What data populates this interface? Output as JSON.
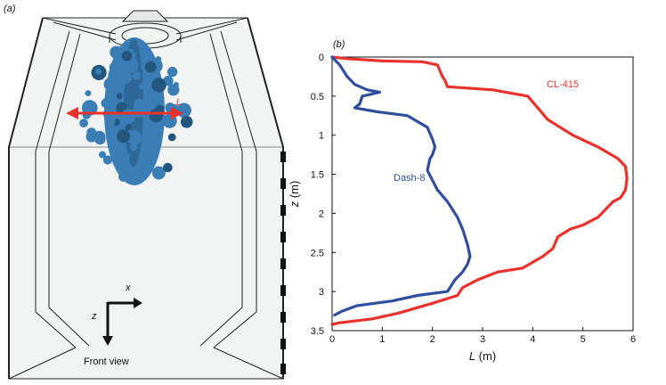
{
  "panel_a": {
    "tag": "(a)",
    "width_marker": "L",
    "axis_x": "x",
    "axis_z": "z",
    "caption": "Front view",
    "colors": {
      "plume": "#3b7db5",
      "plume_dark": "#23577f",
      "arrow": "#e8322b"
    }
  },
  "chart_data": {
    "type": "line",
    "panel_tag": "(b)",
    "xlabel_symbol": "L",
    "xlabel_unit": "(m)",
    "ylabel_symbol": "z",
    "ylabel_unit": "(m)",
    "xlim": [
      0,
      6
    ],
    "ylim": [
      0,
      3.5
    ],
    "y_inverted": true,
    "grid": false,
    "xticks": [
      0,
      1,
      2,
      3,
      4,
      5,
      6
    ],
    "yticks": [
      0,
      0.5,
      1,
      1.5,
      2,
      2.5,
      3,
      3.5
    ],
    "ytick_labels": [
      "0",
      "0.5",
      "1",
      "1.5",
      "2",
      "2.5",
      "3",
      "3.5"
    ],
    "series": [
      {
        "name": "CL-415",
        "color": "#e8322b",
        "x": [
          0.0,
          0.3,
          1.0,
          1.8,
          2.1,
          2.2,
          2.25,
          2.3,
          3.2,
          3.9,
          4.1,
          4.3,
          4.8,
          5.3,
          5.7,
          5.85,
          5.88,
          5.85,
          5.75,
          5.6,
          5.3,
          5.0,
          4.75,
          4.5,
          4.4,
          4.2,
          3.8,
          3.3,
          2.9,
          2.6,
          2.5,
          2.0,
          1.3,
          0.8,
          0.15,
          0.0
        ],
        "y": [
          0.0,
          0.02,
          0.05,
          0.06,
          0.1,
          0.25,
          0.3,
          0.38,
          0.42,
          0.5,
          0.65,
          0.8,
          1.0,
          1.15,
          1.3,
          1.4,
          1.55,
          1.7,
          1.8,
          1.85,
          2.05,
          2.15,
          2.2,
          2.3,
          2.45,
          2.55,
          2.7,
          2.75,
          2.85,
          2.95,
          3.05,
          3.15,
          3.28,
          3.35,
          3.4,
          3.42
        ]
      },
      {
        "name": "Dash-8",
        "color": "#2f4f9e",
        "x": [
          0.0,
          0.15,
          0.3,
          0.45,
          0.7,
          0.95,
          0.6,
          0.55,
          0.45,
          0.9,
          1.5,
          1.9,
          2.0,
          2.05,
          2.0,
          1.95,
          1.9,
          2.1,
          2.3,
          2.5,
          2.6,
          2.7,
          2.75,
          2.7,
          2.6,
          2.45,
          2.3,
          1.7,
          1.2,
          0.5,
          0.2,
          0.05
        ],
        "y": [
          0.0,
          0.1,
          0.25,
          0.35,
          0.42,
          0.45,
          0.5,
          0.6,
          0.65,
          0.7,
          0.75,
          0.9,
          1.05,
          1.15,
          1.25,
          1.3,
          1.45,
          1.7,
          1.85,
          2.05,
          2.2,
          2.4,
          2.55,
          2.65,
          2.75,
          2.85,
          3.0,
          3.05,
          3.12,
          3.18,
          3.25,
          3.3
        ]
      }
    ]
  }
}
